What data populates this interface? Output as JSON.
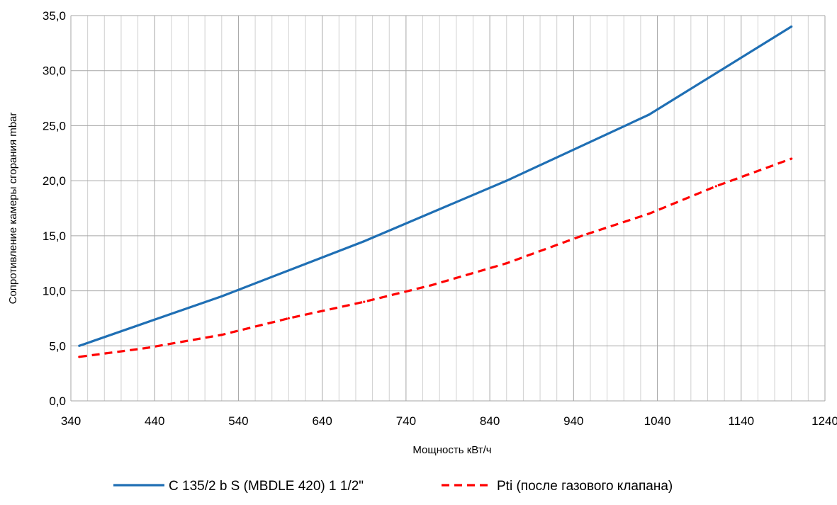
{
  "chart_data": {
    "type": "line",
    "title": "",
    "xlabel": "Мощность кВт/ч",
    "ylabel": "Сопротивление камеры сгорания mbar",
    "xlim": [
      340,
      1240
    ],
    "ylim": [
      0,
      35
    ],
    "x_ticks": [
      340,
      440,
      540,
      640,
      740,
      840,
      940,
      1040,
      1140,
      1240
    ],
    "x_tick_labels": [
      "340",
      "440",
      "540",
      "640",
      "740",
      "840",
      "940",
      "1040",
      "1140",
      "1240"
    ],
    "x_minor_step": 20,
    "y_ticks": [
      0,
      5,
      10,
      15,
      20,
      25,
      30,
      35
    ],
    "y_tick_labels": [
      "0,0",
      "5,0",
      "10,0",
      "15,0",
      "20,0",
      "25,0",
      "30,0",
      "35,0"
    ],
    "grid": true,
    "legend_position": "bottom",
    "series": [
      {
        "name": "C 135/2 b S (MBDLE 420) 1 1/2\"",
        "color": "#1f6fb4",
        "style": "solid",
        "x": [
          350,
          520,
          690,
          860,
          1030,
          1200
        ],
        "y": [
          5.0,
          9.5,
          14.5,
          20.0,
          26.0,
          34.0
        ]
      },
      {
        "name": "Pti (после газового клапана)",
        "color": "#ff0000",
        "style": "dashed",
        "x": [
          350,
          430,
          520,
          600,
          690,
          770,
          860,
          950,
          1030,
          1110,
          1200
        ],
        "y": [
          4.0,
          4.8,
          6.0,
          7.5,
          9.0,
          10.5,
          12.5,
          15.0,
          17.0,
          19.5,
          22.0
        ]
      }
    ]
  }
}
